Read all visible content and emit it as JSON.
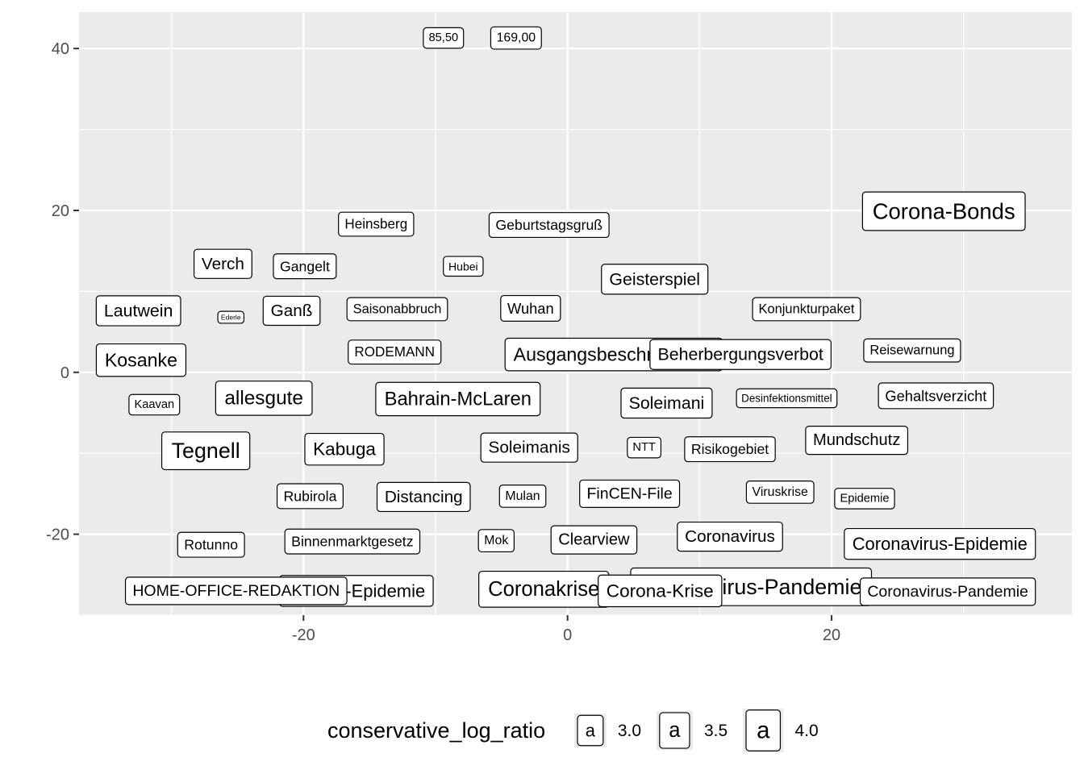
{
  "chart_data": {
    "type": "scatter",
    "title": "",
    "xlabel": "",
    "ylabel": "",
    "xlim": [
      -37,
      38.2
    ],
    "ylim": [
      -30,
      44.5
    ],
    "grid": true,
    "background": "#ebebeb",
    "x_ticks": [
      {
        "value": -20,
        "label": "-20"
      },
      {
        "value": 0,
        "label": "0"
      },
      {
        "value": 20,
        "label": "20"
      }
    ],
    "y_ticks": [
      {
        "value": 40,
        "label": "40"
      },
      {
        "value": 20,
        "label": "20"
      },
      {
        "value": 0,
        "label": "0"
      },
      {
        "value": -20,
        "label": "-20"
      }
    ],
    "legend": {
      "title": "conservative_log_ratio",
      "position": "bottom",
      "items": [
        {
          "symbol": "a",
          "value": 3.0,
          "label": "3.0"
        },
        {
          "symbol": "a",
          "value": 3.5,
          "label": "3.5"
        },
        {
          "symbol": "a",
          "value": 4.0,
          "label": "4.0"
        }
      ]
    },
    "points": [
      {
        "label": "85,50",
        "x": -9.4,
        "y": 41.3,
        "size": 2.4
      },
      {
        "label": "169,00",
        "x": -3.9,
        "y": 41.3,
        "size": 2.6
      },
      {
        "label": "Corona-Bonds",
        "x": 28.5,
        "y": 19.9,
        "size": 4.5
      },
      {
        "label": "Heinsberg",
        "x": -14.5,
        "y": 18.3,
        "size": 2.8
      },
      {
        "label": "Geburtstagsgruß",
        "x": -1.4,
        "y": 18.2,
        "size": 2.9
      },
      {
        "label": "Verch",
        "x": -26.1,
        "y": 13.4,
        "size": 3.4
      },
      {
        "label": "Gangelt",
        "x": -19.9,
        "y": 13.1,
        "size": 2.9
      },
      {
        "label": "Hubei",
        "x": -7.9,
        "y": 13.1,
        "size": 2.3
      },
      {
        "label": "Geisterspiel",
        "x": 6.6,
        "y": 11.5,
        "size": 3.5
      },
      {
        "label": "Lautwein",
        "x": -32.5,
        "y": 7.6,
        "size": 3.5
      },
      {
        "label": "Ederle",
        "x": -25.5,
        "y": 6.8,
        "size": 1.4
      },
      {
        "label": "Ganß",
        "x": -20.9,
        "y": 7.6,
        "size": 3.4
      },
      {
        "label": "Saisonabbruch",
        "x": -12.9,
        "y": 7.8,
        "size": 2.7
      },
      {
        "label": "Wuhan",
        "x": -2.8,
        "y": 7.9,
        "size": 3.0
      },
      {
        "label": "Konjunkturpaket",
        "x": 18.1,
        "y": 7.8,
        "size": 2.7
      },
      {
        "label": "Kosanke",
        "x": -32.3,
        "y": 1.5,
        "size": 3.8
      },
      {
        "label": "RODEMANN",
        "x": -13.1,
        "y": 2.5,
        "size": 2.8
      },
      {
        "label": "Ausgangsbeschränkung",
        "x": 3.5,
        "y": 2.2,
        "size": 3.8
      },
      {
        "label": "Beherbergungsverbot",
        "x": 13.1,
        "y": 2.2,
        "size": 3.5
      },
      {
        "label": "Reisewarnung",
        "x": 26.1,
        "y": 2.7,
        "size": 2.7
      },
      {
        "label": "Kaavan",
        "x": -31.3,
        "y": -4.0,
        "size": 2.4
      },
      {
        "label": "allesgute",
        "x": -23.0,
        "y": -3.2,
        "size": 4.0
      },
      {
        "label": "Bahrain-McLaren",
        "x": -8.3,
        "y": -3.3,
        "size": 3.9
      },
      {
        "label": "Soleimani",
        "x": 7.5,
        "y": -3.8,
        "size": 3.5
      },
      {
        "label": "Desinfektionsmittel",
        "x": 16.6,
        "y": -3.2,
        "size": 2.2
      },
      {
        "label": "Gehaltsverzicht",
        "x": 27.9,
        "y": -2.9,
        "size": 3.0
      },
      {
        "label": "Tegnell",
        "x": -27.4,
        "y": -9.7,
        "size": 4.4
      },
      {
        "label": "Kabuga",
        "x": -16.9,
        "y": -9.5,
        "size": 3.7
      },
      {
        "label": "Soleimanis",
        "x": -2.9,
        "y": -9.3,
        "size": 3.4
      },
      {
        "label": "NTT",
        "x": 5.8,
        "y": -9.3,
        "size": 2.4
      },
      {
        "label": "Risikogebiet",
        "x": 12.3,
        "y": -9.5,
        "size": 2.9
      },
      {
        "label": "Mundschutz",
        "x": 21.9,
        "y": -8.4,
        "size": 3.3
      },
      {
        "label": "Rubirola",
        "x": -19.5,
        "y": -15.3,
        "size": 2.9
      },
      {
        "label": "Distancing",
        "x": -10.9,
        "y": -15.4,
        "size": 3.4
      },
      {
        "label": "Mulan",
        "x": -3.4,
        "y": -15.3,
        "size": 2.6
      },
      {
        "label": "FinCEN-File",
        "x": 4.7,
        "y": -15.0,
        "size": 3.2
      },
      {
        "label": "Viruskrise",
        "x": 16.1,
        "y": -14.8,
        "size": 2.6
      },
      {
        "label": "Epidemie",
        "x": 22.5,
        "y": -15.6,
        "size": 2.4
      },
      {
        "label": "Rotunno",
        "x": -27.0,
        "y": -21.3,
        "size": 2.9
      },
      {
        "label": "Binnenmarktgesetz",
        "x": -16.3,
        "y": -20.9,
        "size": 2.9
      },
      {
        "label": "Mok",
        "x": -5.4,
        "y": -20.8,
        "size": 2.6
      },
      {
        "label": "Clearview",
        "x": 2.0,
        "y": -20.7,
        "size": 3.3
      },
      {
        "label": "Coronavirus",
        "x": 12.3,
        "y": -20.3,
        "size": 3.4
      },
      {
        "label": "Coronavirus-Epidemie",
        "x": 28.2,
        "y": -21.2,
        "size": 3.6
      },
      {
        "label": "Corona-Epidemie",
        "x": -16.0,
        "y": -27.0,
        "size": 3.6
      },
      {
        "label": "Coronakrise",
        "x": -1.8,
        "y": -26.8,
        "size": 4.2
      },
      {
        "label": "Coronavirus-Pandemie",
        "x": 13.9,
        "y": -26.5,
        "size": 4.4
      },
      {
        "label": "HOME-OFFICE-REDAKTION",
        "x": -25.1,
        "y": -27.0,
        "size": 3.2
      },
      {
        "label": "Corona-Krise",
        "x": 7.0,
        "y": -27.0,
        "size": 3.7
      },
      {
        "label": "Coronavirus-Pandemie",
        "x": 28.8,
        "y": -27.1,
        "size": 3.2
      }
    ]
  }
}
